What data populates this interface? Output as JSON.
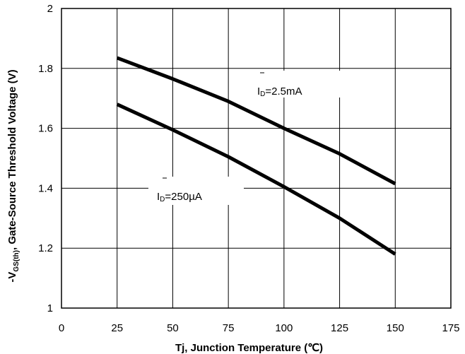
{
  "chart_data": {
    "type": "line",
    "title": "",
    "xlabel": "Tj, Junction Temperature (℃)",
    "ylabel": {
      "prefix": "-V",
      "subscript": "GS(th)",
      "suffix": ", Gate-Source Threshold Voltage (V)"
    },
    "xlim": [
      0,
      175
    ],
    "ylim": [
      1,
      2
    ],
    "x_ticks": [
      0,
      25,
      50,
      75,
      100,
      125,
      150,
      175
    ],
    "y_ticks": [
      1,
      1.2,
      1.4,
      1.6,
      1.8,
      2
    ],
    "y_tick_labels": [
      "1",
      "1.2",
      "1.4",
      "1.6",
      "1.8",
      "2"
    ],
    "grid": true,
    "series": [
      {
        "name": "ID=2.5mA",
        "label": {
          "main": "I",
          "sub": "D",
          "rest": "=2.5mA"
        },
        "x": [
          25,
          50,
          75,
          100,
          125,
          150
        ],
        "y": [
          1.835,
          1.765,
          1.69,
          1.6,
          1.515,
          1.415
        ]
      },
      {
        "name": "ID=250µA",
        "label": {
          "main": "I",
          "sub": "D",
          "rest": "=250µA"
        },
        "x": [
          25,
          50,
          75,
          100,
          125,
          150
        ],
        "y": [
          1.68,
          1.595,
          1.505,
          1.405,
          1.3,
          1.18
        ]
      }
    ]
  }
}
